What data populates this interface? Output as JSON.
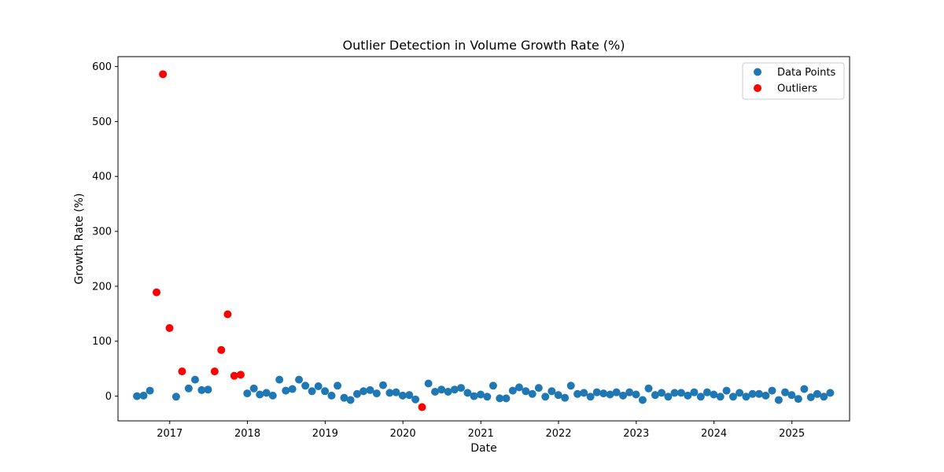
{
  "chart_data": {
    "type": "scatter",
    "title": "Outlier Detection in Volume Growth Rate (%)",
    "xlabel": "Date",
    "ylabel": "Growth Rate (%)",
    "xlim": [
      "2016-05-03",
      "2025-09-29"
    ],
    "ylim": [
      -45,
      618
    ],
    "x_ticks": [
      "2017",
      "2018",
      "2019",
      "2020",
      "2021",
      "2022",
      "2023",
      "2024",
      "2025"
    ],
    "y_ticks": [
      0,
      100,
      200,
      300,
      400,
      500,
      600
    ],
    "legend_position": "top-right",
    "grid": false,
    "series": [
      {
        "name": "Data Points",
        "color": "#1f77b4",
        "points": [
          [
            "2016-07-31",
            0
          ],
          [
            "2016-08-31",
            1
          ],
          [
            "2016-09-30",
            10
          ],
          [
            "2017-01-31",
            -1
          ],
          [
            "2017-03-31",
            14
          ],
          [
            "2017-04-30",
            30
          ],
          [
            "2017-05-31",
            11
          ],
          [
            "2017-06-30",
            12
          ],
          [
            "2017-12-31",
            5
          ],
          [
            "2018-01-31",
            14
          ],
          [
            "2018-02-28",
            3
          ],
          [
            "2018-03-31",
            6
          ],
          [
            "2018-04-30",
            1
          ],
          [
            "2018-05-31",
            30
          ],
          [
            "2018-06-30",
            10
          ],
          [
            "2018-07-31",
            13
          ],
          [
            "2018-08-31",
            30
          ],
          [
            "2018-09-30",
            19
          ],
          [
            "2018-10-31",
            9
          ],
          [
            "2018-11-30",
            18
          ],
          [
            "2018-12-31",
            9
          ],
          [
            "2019-01-31",
            1
          ],
          [
            "2019-02-28",
            19
          ],
          [
            "2019-03-31",
            -3
          ],
          [
            "2019-04-30",
            -7
          ],
          [
            "2019-05-31",
            4
          ],
          [
            "2019-06-30",
            9
          ],
          [
            "2019-07-31",
            11
          ],
          [
            "2019-08-31",
            5
          ],
          [
            "2019-09-30",
            20
          ],
          [
            "2019-10-31",
            6
          ],
          [
            "2019-11-30",
            7
          ],
          [
            "2019-12-31",
            1
          ],
          [
            "2020-01-31",
            2
          ],
          [
            "2020-02-29",
            -6
          ],
          [
            "2020-04-30",
            23
          ],
          [
            "2020-05-31",
            8
          ],
          [
            "2020-06-30",
            12
          ],
          [
            "2020-07-31",
            8
          ],
          [
            "2020-08-31",
            12
          ],
          [
            "2020-09-30",
            15
          ],
          [
            "2020-10-31",
            6
          ],
          [
            "2020-11-30",
            0
          ],
          [
            "2020-12-31",
            3
          ],
          [
            "2021-01-31",
            -1
          ],
          [
            "2021-02-28",
            19
          ],
          [
            "2021-03-31",
            -4
          ],
          [
            "2021-04-30",
            -4
          ],
          [
            "2021-05-31",
            10
          ],
          [
            "2021-06-30",
            16
          ],
          [
            "2021-07-31",
            9
          ],
          [
            "2021-08-31",
            4
          ],
          [
            "2021-09-30",
            15
          ],
          [
            "2021-10-31",
            -1
          ],
          [
            "2021-11-30",
            9
          ],
          [
            "2021-12-31",
            2
          ],
          [
            "2022-01-31",
            -3
          ],
          [
            "2022-02-28",
            19
          ],
          [
            "2022-03-31",
            4
          ],
          [
            "2022-04-30",
            6
          ],
          [
            "2022-05-31",
            -1
          ],
          [
            "2022-06-30",
            7
          ],
          [
            "2022-07-31",
            5
          ],
          [
            "2022-08-31",
            3
          ],
          [
            "2022-09-30",
            7
          ],
          [
            "2022-10-31",
            1
          ],
          [
            "2022-11-30",
            7
          ],
          [
            "2022-12-31",
            3
          ],
          [
            "2023-01-31",
            -7
          ],
          [
            "2023-02-28",
            14
          ],
          [
            "2023-03-31",
            2
          ],
          [
            "2023-04-30",
            6
          ],
          [
            "2023-05-31",
            -1
          ],
          [
            "2023-06-30",
            6
          ],
          [
            "2023-07-31",
            6
          ],
          [
            "2023-08-31",
            1
          ],
          [
            "2023-09-30",
            7
          ],
          [
            "2023-10-31",
            -1
          ],
          [
            "2023-11-30",
            7
          ],
          [
            "2023-12-31",
            3
          ],
          [
            "2024-01-31",
            -1
          ],
          [
            "2024-02-29",
            10
          ],
          [
            "2024-03-31",
            -1
          ],
          [
            "2024-04-30",
            6
          ],
          [
            "2024-05-31",
            -1
          ],
          [
            "2024-06-30",
            4
          ],
          [
            "2024-07-31",
            4
          ],
          [
            "2024-08-31",
            1
          ],
          [
            "2024-09-30",
            10
          ],
          [
            "2024-10-31",
            -7
          ],
          [
            "2024-11-30",
            7
          ],
          [
            "2024-12-31",
            2
          ],
          [
            "2025-01-31",
            -5
          ],
          [
            "2025-02-28",
            13
          ],
          [
            "2025-03-31",
            -2
          ],
          [
            "2025-04-30",
            4
          ],
          [
            "2025-05-31",
            -1
          ],
          [
            "2025-06-30",
            6
          ]
        ]
      },
      {
        "name": "Outliers",
        "color": "#ff0000",
        "points": [
          [
            "2016-10-31",
            189
          ],
          [
            "2016-11-30",
            586
          ],
          [
            "2016-12-31",
            124
          ],
          [
            "2017-02-28",
            45
          ],
          [
            "2017-07-31",
            45
          ],
          [
            "2017-08-31",
            84
          ],
          [
            "2017-09-30",
            149
          ],
          [
            "2017-10-31",
            37
          ],
          [
            "2017-11-30",
            39
          ],
          [
            "2020-03-31",
            -20
          ]
        ]
      }
    ]
  }
}
